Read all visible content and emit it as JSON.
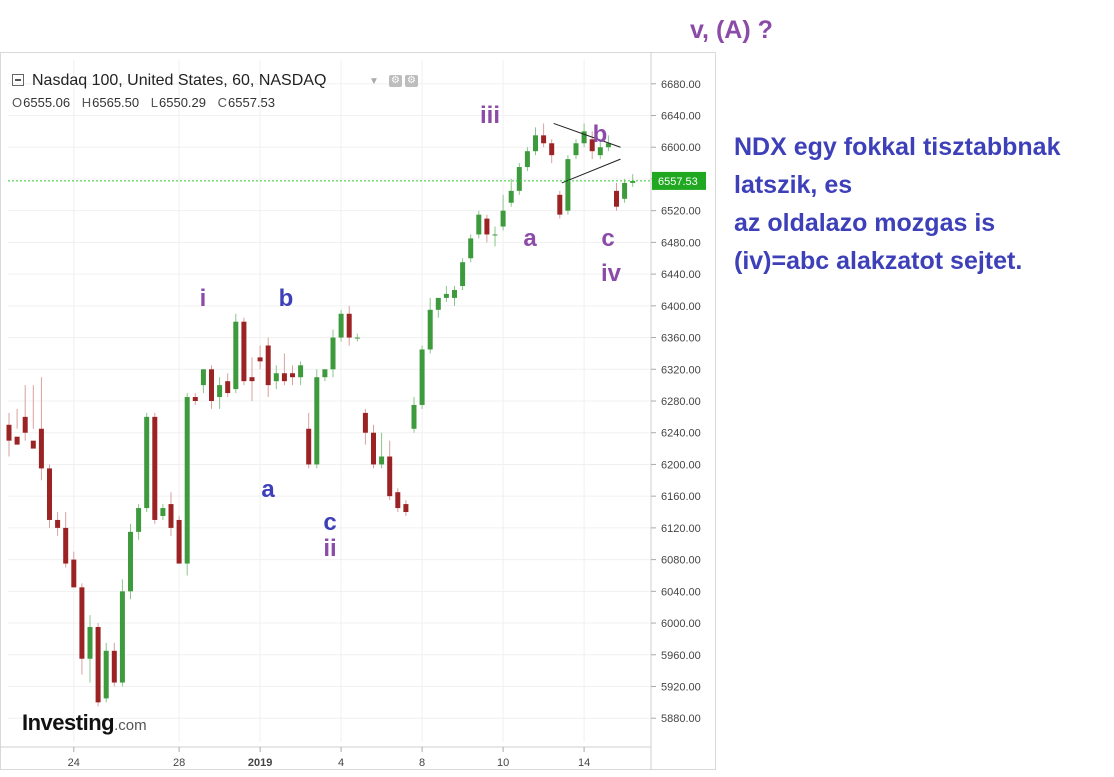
{
  "header": {
    "symbol_title": "Nasdaq 100, United States, 60, NASDAQ",
    "ohlc": {
      "o_label": "O",
      "o": "6555.06",
      "h_label": "H",
      "h": "6565.50",
      "l_label": "L",
      "l": "6550.29",
      "c_label": "C",
      "c": "6557.53"
    }
  },
  "top_note": "v, (A) ?",
  "commentary": "NDX egy fokkal tisztabbnak\nlatszik, es\naz oldalazo mozgas is\n(iv)=abc alakzatot sejtet.",
  "logo": {
    "brand": "Investing",
    "suffix": ".com"
  },
  "colors": {
    "up": "#3d9a3d",
    "down": "#9b2323",
    "wave_purple": "#8b4ca8",
    "wave_blue": "#3d40b8",
    "last_price_line": "#33cc33",
    "last_price_tag": "#21a821"
  },
  "chart_data": {
    "type": "candlestick",
    "y_axis": {
      "ylim": [
        5850,
        6710
      ],
      "ticks": [
        "6680.00",
        "6640.00",
        "6600.00",
        "6560.00",
        "6520.00",
        "6480.00",
        "6440.00",
        "6400.00",
        "6360.00",
        "6320.00",
        "6280.00",
        "6240.00",
        "6200.00",
        "6160.00",
        "6120.00",
        "6080.00",
        "6040.00",
        "6000.00",
        "5960.00",
        "5920.00",
        "5880.00"
      ]
    },
    "x_axis": {
      "ticks": [
        "24",
        "28",
        "2019",
        "4",
        "8",
        "10",
        "14"
      ],
      "tick_index": [
        8,
        21,
        31,
        41,
        51,
        61,
        71
      ]
    },
    "last_price": {
      "value": 6557.53,
      "label": "6557.53"
    },
    "candles": [
      [
        6250,
        6265,
        6230,
        6210
      ],
      [
        6235,
        6270,
        6225,
        6245
      ],
      [
        6260,
        6300,
        6240,
        6230
      ],
      [
        6230,
        6300,
        6220,
        6245
      ],
      [
        6245,
        6310,
        6195,
        6180
      ],
      [
        6195,
        6200,
        6130,
        6120
      ],
      [
        6130,
        6140,
        6120,
        6110
      ],
      [
        6120,
        6140,
        6075,
        6070
      ],
      [
        6080,
        6090,
        6045,
        6045
      ],
      [
        6045,
        6050,
        5955,
        5935
      ],
      [
        5955,
        6010,
        5995,
        5925
      ],
      [
        5995,
        6000,
        5900,
        5895
      ],
      [
        5905,
        5975,
        5965,
        5900
      ],
      [
        5965,
        5975,
        5925,
        5920
      ],
      [
        5925,
        6055,
        6040,
        5920
      ],
      [
        6040,
        6125,
        6115,
        6030
      ],
      [
        6115,
        6150,
        6145,
        6105
      ],
      [
        6145,
        6265,
        6260,
        6140
      ],
      [
        6260,
        6265,
        6130,
        6125
      ],
      [
        6135,
        6150,
        6145,
        6130
      ],
      [
        6150,
        6165,
        6120,
        6110
      ],
      [
        6130,
        6135,
        6075,
        6075
      ],
      [
        6075,
        6290,
        6285,
        6060
      ],
      [
        6285,
        6290,
        6280,
        6275
      ],
      [
        6300,
        6320,
        6320,
        6290
      ],
      [
        6320,
        6325,
        6280,
        6270
      ],
      [
        6285,
        6310,
        6300,
        6270
      ],
      [
        6305,
        6315,
        6290,
        6285
      ],
      [
        6295,
        6390,
        6380,
        6290
      ],
      [
        6380,
        6385,
        6305,
        6300
      ],
      [
        6310,
        6335,
        6305,
        6280
      ],
      [
        6335,
        6350,
        6330,
        6320
      ],
      [
        6350,
        6360,
        6300,
        6285
      ],
      [
        6305,
        6325,
        6315,
        6295
      ],
      [
        6315,
        6340,
        6305,
        6300
      ],
      [
        6315,
        6325,
        6310,
        6300
      ],
      [
        6310,
        6330,
        6325,
        6300
      ],
      [
        6245,
        6265,
        6200,
        6195
      ],
      [
        6200,
        6320,
        6310,
        6195
      ],
      [
        6310,
        6320,
        6320,
        6305
      ],
      [
        6320,
        6370,
        6360,
        6310
      ],
      [
        6360,
        6395,
        6390,
        6355
      ],
      [
        6390,
        6400,
        6360,
        6350
      ],
      [
        6360,
        6365,
        6360,
        6355
      ],
      [
        6265,
        6270,
        6240,
        6225
      ],
      [
        6240,
        6250,
        6200,
        6195
      ],
      [
        6200,
        6240,
        6210,
        6195
      ],
      [
        6210,
        6230,
        6160,
        6155
      ],
      [
        6165,
        6170,
        6145,
        6140
      ],
      [
        6150,
        6155,
        6140,
        6135
      ],
      [
        6245,
        6285,
        6275,
        6240
      ],
      [
        6275,
        6350,
        6345,
        6270
      ],
      [
        6345,
        6410,
        6395,
        6340
      ],
      [
        6395,
        6410,
        6410,
        6385
      ],
      [
        6410,
        6425,
        6415,
        6405
      ],
      [
        6410,
        6425,
        6420,
        6400
      ],
      [
        6425,
        6460,
        6455,
        6420
      ],
      [
        6460,
        6490,
        6485,
        6455
      ],
      [
        6490,
        6520,
        6515,
        6485
      ],
      [
        6510,
        6515,
        6490,
        6480
      ],
      [
        6490,
        6500,
        6490,
        6475
      ],
      [
        6500,
        6540,
        6520,
        6495
      ],
      [
        6530,
        6560,
        6545,
        6525
      ],
      [
        6545,
        6580,
        6575,
        6540
      ],
      [
        6575,
        6600,
        6595,
        6570
      ],
      [
        6595,
        6625,
        6615,
        6590
      ],
      [
        6615,
        6630,
        6605,
        6600
      ],
      [
        6605,
        6610,
        6590,
        6580
      ],
      [
        6540,
        6545,
        6515,
        6510
      ],
      [
        6520,
        6590,
        6585,
        6515
      ],
      [
        6590,
        6610,
        6605,
        6585
      ],
      [
        6605,
        6630,
        6620,
        6600
      ],
      [
        6610,
        6620,
        6595,
        6585
      ],
      [
        6590,
        6610,
        6600,
        6585
      ],
      [
        6600,
        6615,
        6605,
        6595
      ],
      [
        6545,
        6555,
        6525,
        6520
      ],
      [
        6535,
        6560,
        6555,
        6530
      ],
      [
        6555,
        6566,
        6557.53,
        6550
      ]
    ],
    "annotations": [
      {
        "text": "i",
        "color": "wave_purple"
      },
      {
        "text": "b",
        "color": "wave_blue"
      },
      {
        "text": "a",
        "color": "wave_blue"
      },
      {
        "text": "c",
        "color": "wave_blue"
      },
      {
        "text": "ii",
        "color": "wave_purple"
      },
      {
        "text": "iii",
        "color": "wave_purple"
      },
      {
        "text": "a",
        "color": "wave_purple"
      },
      {
        "text": "b",
        "color": "wave_purple"
      },
      {
        "text": "c",
        "color": "wave_purple"
      },
      {
        "text": "iv",
        "color": "wave_purple"
      }
    ]
  }
}
